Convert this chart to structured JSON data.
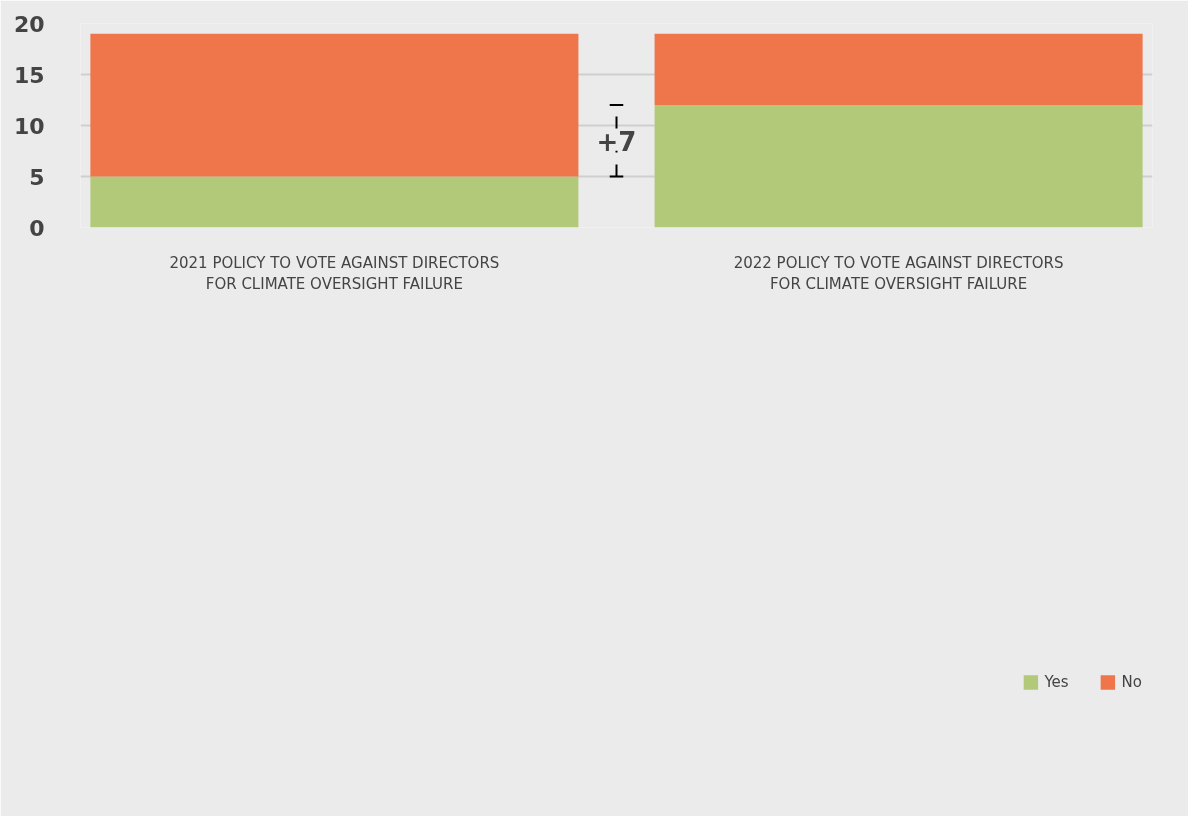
{
  "chart_data": {
    "type": "bar",
    "stacked": true,
    "categories": [
      "2021 POLICY TO VOTE AGAINST DIRECTORS\nFOR CLIMATE OVERSIGHT FAILURE",
      "2022 POLICY TO VOTE AGAINST DIRECTORS\nFOR CLIMATE OVERSIGHT FAILURE"
    ],
    "series": [
      {
        "name": "Yes",
        "color": "#b3c97a",
        "values": [
          5,
          12
        ]
      },
      {
        "name": "No",
        "color": "#ef754b",
        "values": [
          14,
          7
        ]
      }
    ],
    "ylim": [
      0,
      20
    ],
    "yticks": [
      0,
      5,
      10,
      15,
      20
    ],
    "grid": "y",
    "legend": "bottom right",
    "annotations": [
      "+7"
    ]
  }
}
